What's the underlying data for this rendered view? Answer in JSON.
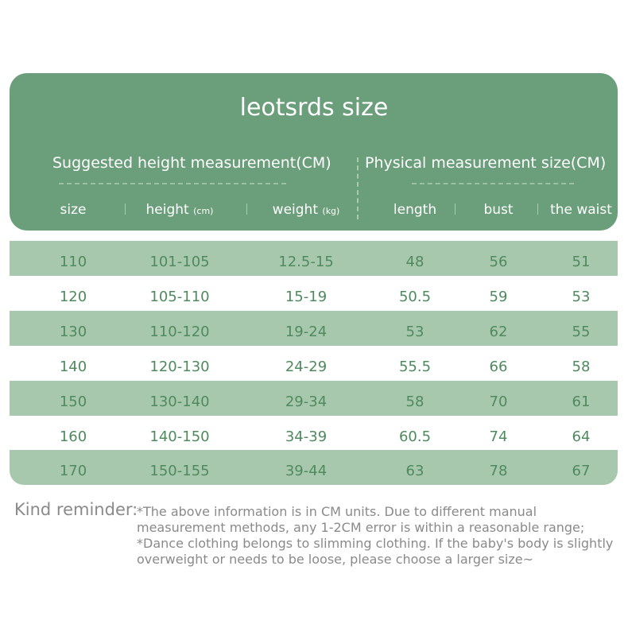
{
  "header": {
    "title": "leotsrds size",
    "group_left": "Suggested height measurement(CM)",
    "group_right": "Physical measurement size(CM)",
    "columns": [
      {
        "label": "size"
      },
      {
        "label": "height",
        "unit": "(cm)"
      },
      {
        "label": "weight",
        "unit": "(kg)"
      },
      {
        "label": "length"
      },
      {
        "label": "bust"
      },
      {
        "label": "the waist"
      }
    ]
  },
  "table": {
    "rows": [
      [
        "110",
        "101-105",
        "12.5-15",
        "48",
        "56",
        "51"
      ],
      [
        "120",
        "105-110",
        "15-19",
        "50.5",
        "59",
        "53"
      ],
      [
        "130",
        "110-120",
        "19-24",
        "53",
        "62",
        "55"
      ],
      [
        "140",
        "120-130",
        "24-29",
        "55.5",
        "66",
        "58"
      ],
      [
        "150",
        "130-140",
        "29-34",
        "58",
        "70",
        "61"
      ],
      [
        "160",
        "140-150",
        "34-39",
        "60.5",
        "74",
        "64"
      ],
      [
        "170",
        "150-155",
        "39-44",
        "63",
        "78",
        "67"
      ]
    ]
  },
  "reminder": {
    "label": "Kind reminder:",
    "lines": [
      "*The above information is in CM units. Due to different manual measurement methods, any 1-2CM error is within a reasonable range;",
      "*Dance clothing belongs to slimming clothing. If the baby's body is slightly overweight or needs to be loose, please choose a larger size~"
    ]
  }
}
